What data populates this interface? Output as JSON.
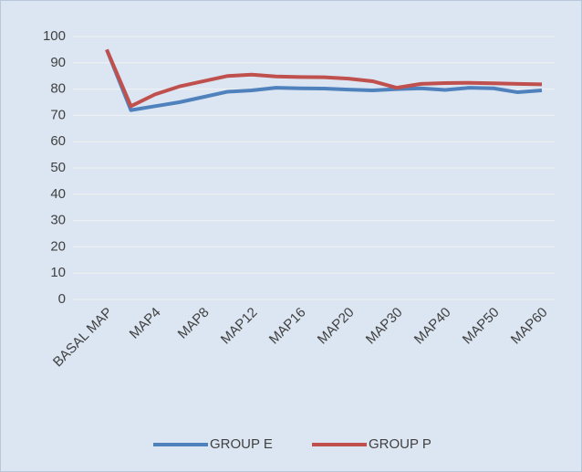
{
  "chart_data": {
    "type": "line",
    "categories": [
      "BASAL MAP",
      null,
      "MAP4",
      null,
      "MAP8",
      null,
      "MAP12",
      null,
      "MAP16",
      null,
      "MAP20",
      null,
      "MAP30",
      null,
      "MAP40",
      null,
      "MAP50",
      null,
      "MAP60"
    ],
    "series": [
      {
        "name": "GROUP E",
        "color": "#4f81bd",
        "values": [
          95,
          72,
          73.5,
          75,
          77,
          79,
          79.5,
          80.5,
          80.3,
          80.2,
          79.8,
          79.5,
          80,
          80.3,
          79.7,
          80.5,
          80.3,
          78.8,
          79.5
        ]
      },
      {
        "name": "GROUP P",
        "color": "#c0504d",
        "values": [
          95,
          73.5,
          78,
          81,
          83,
          85,
          85.5,
          84.8,
          84.6,
          84.5,
          84,
          83,
          80.5,
          82,
          82.3,
          82.4,
          82.2,
          82,
          81.8
        ]
      }
    ],
    "ylim": [
      0,
      100
    ],
    "yticks": [
      0,
      10,
      20,
      30,
      40,
      50,
      60,
      70,
      80,
      90,
      100
    ],
    "grid": true,
    "legend": "bottom"
  }
}
